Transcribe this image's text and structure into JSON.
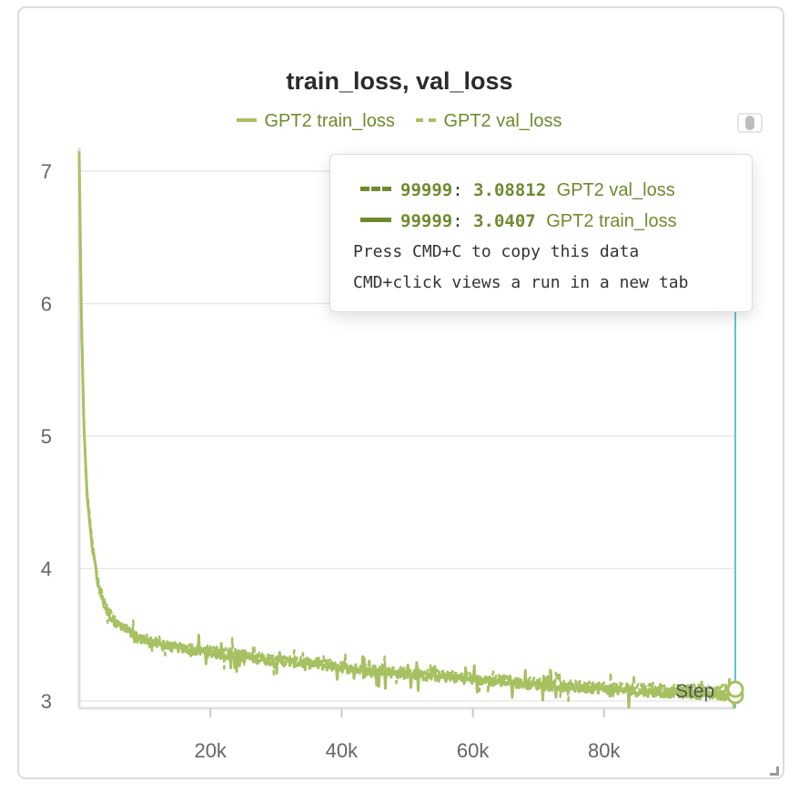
{
  "chart_data": {
    "type": "line",
    "title": "train_loss, val_loss",
    "xlabel": "Step",
    "ylabel": "",
    "xlim": [
      0,
      100000
    ],
    "ylim": [
      2.95,
      7.2
    ],
    "x_ticks": [
      20000,
      40000,
      60000,
      80000
    ],
    "x_tick_labels": [
      "20k",
      "40k",
      "60k",
      "80k"
    ],
    "y_ticks": [
      3,
      4,
      5,
      6,
      7
    ],
    "y_tick_labels": [
      "3",
      "4",
      "5",
      "6",
      "7"
    ],
    "grid": true,
    "legend_position": "top",
    "series": [
      {
        "name": "GPT2 train_loss",
        "style": "solid",
        "color": "#a7c162",
        "x": [
          0,
          300,
          700,
          1200,
          2000,
          3000,
          4000,
          5000,
          6500,
          8000,
          10000,
          12500,
          15000,
          20000,
          25000,
          30000,
          35000,
          40000,
          45000,
          50000,
          55000,
          60000,
          65000,
          70000,
          75000,
          80000,
          85000,
          90000,
          95000,
          99999
        ],
        "y": [
          7.15,
          6.0,
          5.1,
          4.55,
          4.15,
          3.85,
          3.7,
          3.62,
          3.55,
          3.5,
          3.45,
          3.42,
          3.4,
          3.36,
          3.33,
          3.3,
          3.28,
          3.25,
          3.22,
          3.2,
          3.18,
          3.16,
          3.14,
          3.12,
          3.1,
          3.09,
          3.07,
          3.06,
          3.05,
          3.0407
        ]
      },
      {
        "name": "GPT2 val_loss",
        "style": "dashed",
        "color": "#a7c162",
        "x": [
          0,
          300,
          700,
          1200,
          2000,
          3000,
          4000,
          5000,
          6500,
          8000,
          10000,
          12500,
          15000,
          20000,
          25000,
          30000,
          35000,
          40000,
          45000,
          50000,
          55000,
          60000,
          65000,
          70000,
          75000,
          80000,
          85000,
          90000,
          95000,
          99999
        ],
        "y": [
          7.1,
          6.05,
          5.15,
          4.6,
          4.2,
          3.88,
          3.72,
          3.64,
          3.57,
          3.52,
          3.47,
          3.44,
          3.42,
          3.38,
          3.35,
          3.32,
          3.3,
          3.27,
          3.24,
          3.22,
          3.2,
          3.18,
          3.16,
          3.14,
          3.12,
          3.11,
          3.1,
          3.09,
          3.09,
          3.08812
        ]
      }
    ],
    "hover_step": 99999
  },
  "legend": {
    "train_label": "GPT2 train_loss",
    "val_label": "GPT2 val_loss"
  },
  "tooltip": {
    "rows": [
      {
        "step": "99999",
        "sep": ":",
        "value": "3.08812",
        "name": "GPT2 val_loss",
        "style": "dashed"
      },
      {
        "step": "99999",
        "sep": ":",
        "value": "3.0407",
        "name": "GPT2 train_loss",
        "style": "solid"
      }
    ],
    "hint_copy": "Press CMD+C to copy this data",
    "hint_click": "CMD+click views a run in a new tab"
  },
  "colors": {
    "series": "#a7c162",
    "series_dark": "#6f8a2e",
    "cursor": "#5cc7cf",
    "grid": "#e8e8e8"
  }
}
